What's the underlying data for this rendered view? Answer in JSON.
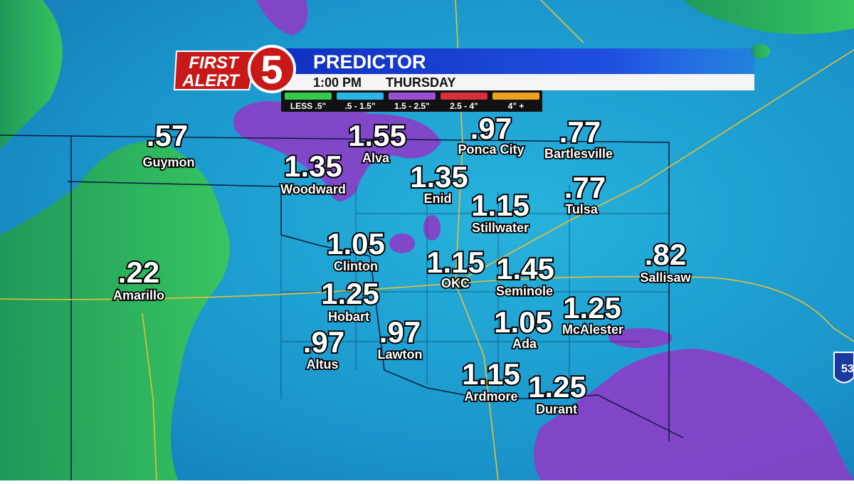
{
  "header": {
    "brand": {
      "line1": "FIRST",
      "line2": "ALERT",
      "number": "5"
    },
    "title": "PREDICTOR",
    "time": "1:00 PM",
    "day": "THURSDAY"
  },
  "legend": [
    {
      "label": "LESS .5\"",
      "color": "#36c94a"
    },
    {
      "label": ".5 - 1.5\"",
      "color": "#2ab6e6"
    },
    {
      "label": "1.5 - 2.5\"",
      "color": "#9b4fd6"
    },
    {
      "label": "2.5 - 4\"",
      "color": "#d8303a"
    },
    {
      "label": "4\" +",
      "color": "#f0a020"
    }
  ],
  "cities": [
    {
      "name": "Guymon",
      "value": ".57"
    },
    {
      "name": "Woodward",
      "value": "1.35"
    },
    {
      "name": "Alva",
      "value": "1.55"
    },
    {
      "name": "Ponca City",
      "value": ".97"
    },
    {
      "name": "Bartlesville",
      "value": ".77"
    },
    {
      "name": "Enid",
      "value": "1.35"
    },
    {
      "name": "Tulsa",
      "value": ".77"
    },
    {
      "name": "Stillwater",
      "value": "1.15"
    },
    {
      "name": "Clinton",
      "value": "1.05"
    },
    {
      "name": "OKC",
      "value": "1.15"
    },
    {
      "name": "Seminole",
      "value": "1.45"
    },
    {
      "name": "Sallisaw",
      "value": ".82"
    },
    {
      "name": "Amarillo",
      "value": ".22"
    },
    {
      "name": "Hobart",
      "value": "1.25"
    },
    {
      "name": "McAlester",
      "value": "1.25"
    },
    {
      "name": "Ada",
      "value": "1.05"
    },
    {
      "name": "Altus",
      "value": ".97"
    },
    {
      "name": "Lawton",
      "value": ".97"
    },
    {
      "name": "Ardmore",
      "value": "1.15"
    },
    {
      "name": "Durant",
      "value": "1.25"
    }
  ],
  "map": {
    "shield": "53"
  }
}
